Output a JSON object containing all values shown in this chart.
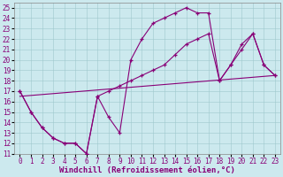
{
  "xlabel": "Windchill (Refroidissement éolien,°C)",
  "xlim": [
    -0.5,
    23.5
  ],
  "ylim": [
    11,
    25.5
  ],
  "xticks": [
    0,
    1,
    2,
    3,
    4,
    5,
    6,
    7,
    8,
    9,
    10,
    11,
    12,
    13,
    14,
    15,
    16,
    17,
    18,
    19,
    20,
    21,
    22,
    23
  ],
  "yticks": [
    11,
    12,
    13,
    14,
    15,
    16,
    17,
    18,
    19,
    20,
    21,
    22,
    23,
    24,
    25
  ],
  "bg_color": "#cce9ee",
  "line_color": "#880077",
  "line1_x": [
    0,
    1,
    2,
    3,
    4,
    5,
    6,
    7,
    8,
    9,
    10,
    11,
    12,
    13,
    14,
    15,
    16,
    17,
    18,
    19,
    20,
    21,
    22,
    23
  ],
  "line1_y": [
    17,
    15,
    13.5,
    12.5,
    12.0,
    12.0,
    11.0,
    16.5,
    14.5,
    13.0,
    20.0,
    22.0,
    23.5,
    24.0,
    24.5,
    25.0,
    24.5,
    24.5,
    18.0,
    19.5,
    21.0,
    22.5,
    19.5,
    18.5
  ],
  "line2_x": [
    0,
    1,
    2,
    3,
    4,
    5,
    6,
    7,
    8,
    9,
    10,
    11,
    12,
    13,
    14,
    15,
    16,
    17,
    18,
    19,
    20,
    21,
    22,
    23
  ],
  "line2_y": [
    17,
    15,
    13.5,
    12.5,
    12.0,
    12.0,
    11.0,
    16.5,
    17.0,
    17.5,
    18.0,
    18.5,
    19.0,
    19.5,
    20.5,
    21.5,
    22.0,
    22.5,
    18.0,
    19.5,
    21.5,
    22.5,
    19.5,
    18.5
  ],
  "line3_x": [
    0,
    23
  ],
  "line3_y": [
    16.5,
    18.5
  ],
  "grid_color": "#9ec8cc",
  "tick_fontsize": 5.5,
  "label_fontsize": 6.5
}
